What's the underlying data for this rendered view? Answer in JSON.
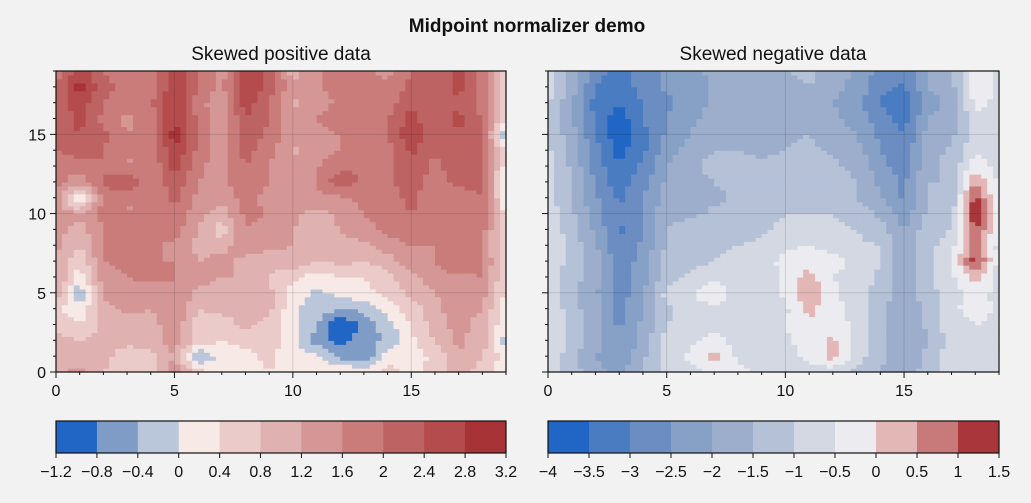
{
  "suptitle": "Midpoint normalizer demo",
  "chart_data": [
    {
      "type": "heatmap",
      "subtype": "filled-contour",
      "title": "Skewed positive data",
      "xlabel": "",
      "ylabel": "",
      "xlim": [
        0,
        19
      ],
      "ylim": [
        0,
        19
      ],
      "xticks": [
        "0",
        "5",
        "10",
        "15"
      ],
      "yticks": [
        "0",
        "5",
        "10",
        "15"
      ],
      "grid": true,
      "colorbar": {
        "location": "bottom",
        "levels": [
          -1.2,
          -0.8,
          -0.4,
          0,
          0.4,
          0.8,
          1.2,
          1.6,
          2,
          2.4,
          2.8,
          3.2
        ],
        "tick_labels": [
          "−1.2",
          "−0.8",
          "−0.4",
          "0",
          "0.4",
          "0.8",
          "1.2",
          "1.6",
          "2",
          "2.4",
          "2.8",
          "3.2"
        ],
        "colors": [
          "#2166c4",
          "#7f9cc6",
          "#bac6da",
          "#f6e9e6",
          "#ebcbca",
          "#dfb2b1",
          "#d49796",
          "#ca7c7b",
          "#be6363",
          "#b44c4d",
          "#a73337"
        ]
      },
      "z": [
        [
          1.1,
          1.3,
          0.8,
          0.5,
          0.6,
          1.5,
          0.6,
          0.1,
          0.2,
          0.4,
          0.3,
          0.2,
          0.5,
          0.2,
          0.6,
          0.3,
          0.5,
          1.0,
          0.6,
          0.1
        ],
        [
          1.2,
          1.0,
          0.9,
          0.6,
          0.6,
          1.2,
          -0.5,
          0.2,
          0.3,
          0.5,
          0.2,
          0.1,
          -0.5,
          -0.8,
          0.2,
          0.2,
          0.5,
          1.2,
          0.8,
          0.2
        ],
        [
          1.0,
          0.8,
          0.9,
          0.9,
          1.0,
          1.4,
          0.6,
          0.4,
          0.5,
          0.6,
          0.1,
          -0.6,
          -0.9,
          -0.6,
          -0.3,
          0.3,
          0.8,
          1.3,
          1.0,
          -0.2
        ],
        [
          0.7,
          0.4,
          0.9,
          1.0,
          1.0,
          1.5,
          0.6,
          0.6,
          0.9,
          0.7,
          0.2,
          -0.4,
          -1.2,
          -0.7,
          -0.2,
          0.4,
          1.0,
          1.4,
          0.9,
          0.1
        ],
        [
          0.5,
          0.1,
          1.1,
          1.3,
          1.2,
          1.6,
          0.8,
          0.9,
          1.0,
          0.9,
          0.1,
          -0.2,
          -0.4,
          -0.3,
          0.2,
          0.6,
          1.0,
          1.6,
          1.2,
          0.2
        ],
        [
          1.1,
          -0.4,
          1.3,
          1.4,
          1.4,
          1.6,
          1.1,
          1.0,
          1.2,
          0.9,
          0.2,
          -0.1,
          0.1,
          0.3,
          0.5,
          0.9,
          1.2,
          1.6,
          1.4,
          0.3
        ],
        [
          1.3,
          0.2,
          1.4,
          1.6,
          1.7,
          1.6,
          1.4,
          1.2,
          1.2,
          0.8,
          0.5,
          0.2,
          0.4,
          0.4,
          0.7,
          1.1,
          1.4,
          1.5,
          1.6,
          0.4
        ],
        [
          1.2,
          0.4,
          1.6,
          1.7,
          1.6,
          1.6,
          1.2,
          1.3,
          1.1,
          0.9,
          1.1,
          0.8,
          0.9,
          0.8,
          1.0,
          1.5,
          1.6,
          2.1,
          1.7,
          0.4
        ],
        [
          1.3,
          0.8,
          1.6,
          1.7,
          1.7,
          1.5,
          1.1,
          1.1,
          1.4,
          1.3,
          1.2,
          0.9,
          1.1,
          1.1,
          1.4,
          1.6,
          1.6,
          1.6,
          1.7,
          0.3
        ],
        [
          1.4,
          1.0,
          1.6,
          1.6,
          1.7,
          1.8,
          1.2,
          0.5,
          1.6,
          1.4,
          1.2,
          1.0,
          1.2,
          1.4,
          1.7,
          1.9,
          1.6,
          1.7,
          1.8,
          0.2
        ],
        [
          1.4,
          1.3,
          1.7,
          1.6,
          1.6,
          1.9,
          1.3,
          1.0,
          1.7,
          1.6,
          1.3,
          1.0,
          1.3,
          1.6,
          1.8,
          2.0,
          1.8,
          1.7,
          1.9,
          0.2
        ],
        [
          1.6,
          -0.3,
          1.8,
          1.6,
          1.6,
          2.1,
          1.5,
          1.3,
          1.8,
          1.4,
          1.3,
          1.5,
          1.5,
          1.7,
          1.8,
          2.1,
          1.7,
          1.8,
          2.0,
          0.1
        ],
        [
          1.7,
          1.4,
          2.0,
          2.5,
          1.6,
          2.3,
          1.6,
          1.5,
          1.9,
          1.6,
          1.3,
          1.6,
          2.3,
          1.9,
          1.9,
          2.2,
          1.8,
          2.1,
          2.1,
          -0.3
        ],
        [
          1.8,
          1.7,
          2.0,
          1.6,
          1.6,
          2.6,
          1.7,
          1.4,
          2.0,
          1.6,
          1.4,
          1.6,
          1.9,
          2.0,
          1.9,
          2.3,
          1.9,
          2.2,
          2.0,
          0.2
        ],
        [
          2.0,
          2.2,
          2.0,
          1.6,
          1.6,
          2.8,
          1.9,
          1.3,
          2.2,
          1.7,
          1.1,
          1.3,
          1.6,
          1.9,
          1.8,
          2.5,
          2.0,
          2.3,
          2.0,
          0.3
        ],
        [
          2.2,
          2.4,
          2.1,
          1.6,
          1.7,
          3.0,
          2.0,
          1.3,
          2.3,
          1.9,
          1.3,
          1.5,
          1.6,
          1.8,
          2.0,
          2.7,
          2.2,
          2.4,
          2.1,
          -0.5
        ],
        [
          2.2,
          2.5,
          1.9,
          1.5,
          1.8,
          2.8,
          1.9,
          1.3,
          2.4,
          2.0,
          1.3,
          1.6,
          1.8,
          1.6,
          2.0,
          2.6,
          2.0,
          2.5,
          2.0,
          0.3
        ],
        [
          2.1,
          2.6,
          2.0,
          1.7,
          1.9,
          2.9,
          1.8,
          1.2,
          2.6,
          2.0,
          1.1,
          1.4,
          1.7,
          1.6,
          1.8,
          2.3,
          2.0,
          2.4,
          1.8,
          0.2
        ],
        [
          2.0,
          3.0,
          2.2,
          1.8,
          1.8,
          2.7,
          2.0,
          1.5,
          2.8,
          2.3,
          1.3,
          1.5,
          1.8,
          1.7,
          1.7,
          2.1,
          2.2,
          2.5,
          1.9,
          0.3
        ],
        [
          1.8,
          2.6,
          2.0,
          1.7,
          1.7,
          2.8,
          2.0,
          1.4,
          2.7,
          2.3,
          1.0,
          1.5,
          1.8,
          1.7,
          1.5,
          2.0,
          2.2,
          2.5,
          1.8,
          0.2
        ]
      ]
    },
    {
      "type": "heatmap",
      "subtype": "filled-contour",
      "title": "Skewed negative data",
      "xlabel": "",
      "ylabel": "",
      "xlim": [
        0,
        19
      ],
      "ylim": [
        0,
        19
      ],
      "xticks": [
        "0",
        "5",
        "10",
        "15"
      ],
      "yticks": [],
      "grid": true,
      "colorbar": {
        "location": "bottom",
        "levels": [
          -4,
          -3.5,
          -3,
          -2.5,
          -2,
          -1.5,
          -1,
          -0.5,
          0,
          0.5,
          1,
          1.5
        ],
        "tick_labels": [
          "−4",
          "−3.5",
          "−3",
          "−2.5",
          "−2",
          "−1.5",
          "−1",
          "−0.5",
          "0",
          "0.5",
          "1",
          "1.5"
        ],
        "colors": [
          "#2166c4",
          "#4a7cc2",
          "#6b8dc2",
          "#86a0c6",
          "#9daecc",
          "#b5c1d7",
          "#d3d8e3",
          "#ececf0",
          "#e2b7b6",
          "#c87a7b",
          "#a8363b"
        ]
      },
      "z": [
        [
          -0.6,
          -1.3,
          -1.8,
          -2.1,
          -1.5,
          -0.8,
          -0.7,
          -0.3,
          -0.4,
          -0.6,
          -0.8,
          -0.7,
          -0.9,
          -1.1,
          -1.6,
          -1.7,
          -1.3,
          -0.8,
          -0.7,
          -0.6
        ],
        [
          -0.6,
          -1.3,
          -2.0,
          -2.4,
          -1.6,
          -0.7,
          -0.4,
          0.2,
          -0.6,
          -0.7,
          -0.6,
          -0.4,
          0.2,
          -0.8,
          -1.3,
          -1.9,
          -1.4,
          -0.7,
          -0.8,
          -0.6
        ],
        [
          -0.5,
          -1.2,
          -1.8,
          -2.5,
          -1.8,
          -0.8,
          -0.6,
          -0.3,
          -0.7,
          -0.8,
          -0.6,
          -0.3,
          0.1,
          -0.7,
          -1.4,
          -1.9,
          -1.5,
          -0.8,
          -0.6,
          -0.6
        ],
        [
          -0.5,
          -1.2,
          -1.8,
          -2.6,
          -1.9,
          -1.0,
          -0.8,
          -0.6,
          -0.8,
          -0.8,
          -0.5,
          0.0,
          -0.3,
          -0.6,
          -1.4,
          -2.0,
          -1.4,
          -0.7,
          -0.5,
          -0.6
        ],
        [
          -0.5,
          -1.3,
          -1.8,
          -2.7,
          -2.0,
          -1.1,
          -0.7,
          -0.8,
          -0.9,
          -0.9,
          -0.6,
          0.1,
          -0.3,
          -0.7,
          -1.3,
          -2.0,
          -1.3,
          -0.6,
          -0.3,
          -0.6
        ],
        [
          -0.6,
          -1.4,
          -1.9,
          -2.8,
          -2.1,
          -0.8,
          -0.6,
          0.2,
          -0.9,
          -1.0,
          -0.4,
          0.6,
          -0.4,
          -0.8,
          -1.2,
          -1.9,
          -1.2,
          -0.8,
          -0.2,
          -0.7
        ],
        [
          -0.7,
          -1.3,
          -1.8,
          -2.9,
          -2.2,
          -1.2,
          -0.9,
          -0.8,
          -1.0,
          -0.9,
          -0.3,
          0.2,
          -0.5,
          -0.7,
          -1.1,
          -1.8,
          -1.1,
          -0.6,
          0.2,
          -0.7
        ],
        [
          -0.6,
          -1.2,
          -1.8,
          -2.8,
          -2.3,
          -1.3,
          -1.1,
          -1.0,
          -0.9,
          -0.8,
          -0.3,
          -0.2,
          -0.3,
          -0.6,
          -1.0,
          -1.8,
          -1.1,
          -0.5,
          1.3,
          -0.7
        ],
        [
          -0.5,
          -1.2,
          -1.9,
          -3.0,
          -2.4,
          -1.4,
          -1.2,
          -1.1,
          -1.0,
          -0.9,
          -0.6,
          -0.5,
          -0.7,
          -0.9,
          -1.0,
          -1.9,
          -1.2,
          -0.7,
          0.8,
          -0.7
        ],
        [
          -0.6,
          -1.3,
          -2.1,
          -3.1,
          -2.6,
          -1.5,
          -1.3,
          -1.2,
          -1.2,
          -1.1,
          -0.8,
          -0.8,
          -0.9,
          -1.0,
          -1.3,
          -2.0,
          -1.2,
          -1.0,
          1.1,
          -0.6
        ],
        [
          -0.7,
          -1.4,
          -2.3,
          -3.0,
          -2.5,
          -1.6,
          -1.6,
          -1.4,
          -1.3,
          -1.2,
          -1.0,
          -1.0,
          -1.0,
          -1.2,
          -1.6,
          -2.3,
          -1.4,
          -1.3,
          1.6,
          -0.6
        ],
        [
          -0.8,
          -1.4,
          -2.4,
          -3.1,
          -2.5,
          -1.8,
          -1.8,
          -1.6,
          -1.4,
          -1.3,
          -1.2,
          -1.2,
          -1.2,
          -1.5,
          -1.9,
          -2.6,
          -1.5,
          -1.4,
          1.3,
          -0.7
        ],
        [
          -0.8,
          -1.5,
          -2.6,
          -3.3,
          -2.7,
          -1.9,
          -1.7,
          -1.5,
          -1.4,
          -1.4,
          -1.3,
          -1.3,
          -1.3,
          -1.5,
          -2.1,
          -2.6,
          -1.5,
          -1.5,
          0.5,
          -0.6
        ],
        [
          -0.9,
          -1.6,
          -2.7,
          -3.5,
          -2.9,
          -2.0,
          -1.6,
          -1.3,
          -1.3,
          -1.4,
          -1.3,
          -1.2,
          -1.4,
          -1.6,
          -2.3,
          -2.8,
          -1.6,
          -1.4,
          -0.2,
          -0.7
        ],
        [
          -0.9,
          -1.7,
          -2.8,
          -3.7,
          -3.1,
          -2.2,
          -1.8,
          -1.5,
          -1.5,
          -1.6,
          -1.5,
          -1.4,
          -1.6,
          -1.8,
          -2.5,
          -2.9,
          -1.7,
          -1.4,
          -0.6,
          -0.8
        ],
        [
          -1.0,
          -1.8,
          -3.0,
          -3.9,
          -3.2,
          -2.4,
          -2.0,
          -1.7,
          -1.6,
          -1.7,
          -1.6,
          -1.5,
          -1.8,
          -2.0,
          -2.6,
          -3.0,
          -1.8,
          -1.6,
          -0.8,
          -0.8
        ],
        [
          -1.0,
          -1.9,
          -3.1,
          -3.8,
          -3.0,
          -2.5,
          -2.1,
          -1.8,
          -1.8,
          -1.9,
          -1.7,
          -1.5,
          -1.9,
          -2.2,
          -2.8,
          -3.2,
          -2.0,
          -1.8,
          -0.6,
          -0.7
        ],
        [
          -0.9,
          -1.9,
          -3.2,
          -3.5,
          -3.0,
          -2.6,
          -2.3,
          -1.9,
          -1.9,
          -2.0,
          -1.8,
          -1.6,
          -2.0,
          -2.3,
          -3.0,
          -3.4,
          -2.2,
          -1.9,
          -0.4,
          -0.6
        ],
        [
          -0.8,
          -1.8,
          -3.0,
          -3.3,
          -2.8,
          -2.4,
          -2.4,
          -1.9,
          -1.8,
          -1.9,
          -1.7,
          -1.5,
          -1.8,
          -2.2,
          -2.9,
          -3.1,
          -2.0,
          -1.7,
          0.1,
          -0.6
        ],
        [
          -0.8,
          -1.7,
          -2.8,
          -3.2,
          -2.8,
          -2.4,
          -2.3,
          -1.8,
          -1.7,
          -1.8,
          -1.5,
          -1.4,
          -1.7,
          -2.1,
          -2.7,
          -2.9,
          -2.0,
          -1.6,
          -0.2,
          -0.7
        ]
      ]
    }
  ]
}
